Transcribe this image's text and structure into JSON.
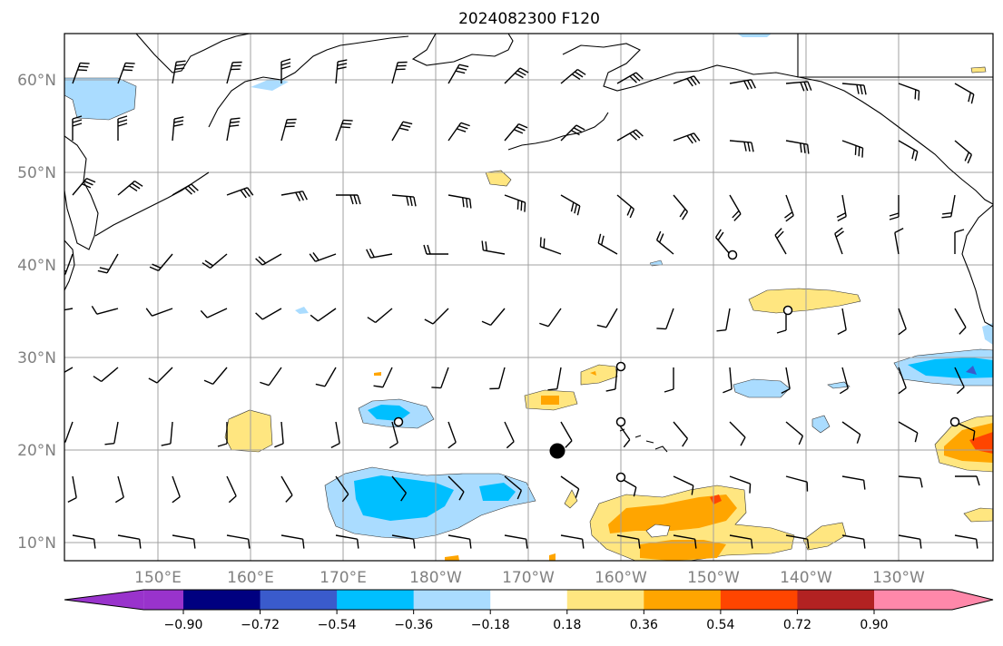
{
  "title": "2024082300 F120",
  "axes": {
    "lat_labels": [
      "60°N",
      "50°N",
      "40°N",
      "30°N",
      "20°N",
      "10°N"
    ],
    "lon_labels": [
      "150°E",
      "160°E",
      "170°E",
      "180°W",
      "170°W",
      "160°W",
      "150°W",
      "140°W",
      "130°W"
    ]
  },
  "colorbar": {
    "ticks": [
      "−0.90",
      "−0.72",
      "−0.54",
      "−0.36",
      "−0.18",
      "0.18",
      "0.36",
      "0.54",
      "0.72",
      "0.90"
    ],
    "colors": [
      "#9933cc",
      "#000080",
      "#3a5bcc",
      "#00bfff",
      "#aadcff",
      "#ffffff",
      "#ffe680",
      "#ffa500",
      "#ff4500",
      "#b22222",
      "#ff88aa"
    ]
  },
  "map_colors": {
    "land_outline": "#000000",
    "grid": "#a0a0a0",
    "barb": "#000000"
  }
}
